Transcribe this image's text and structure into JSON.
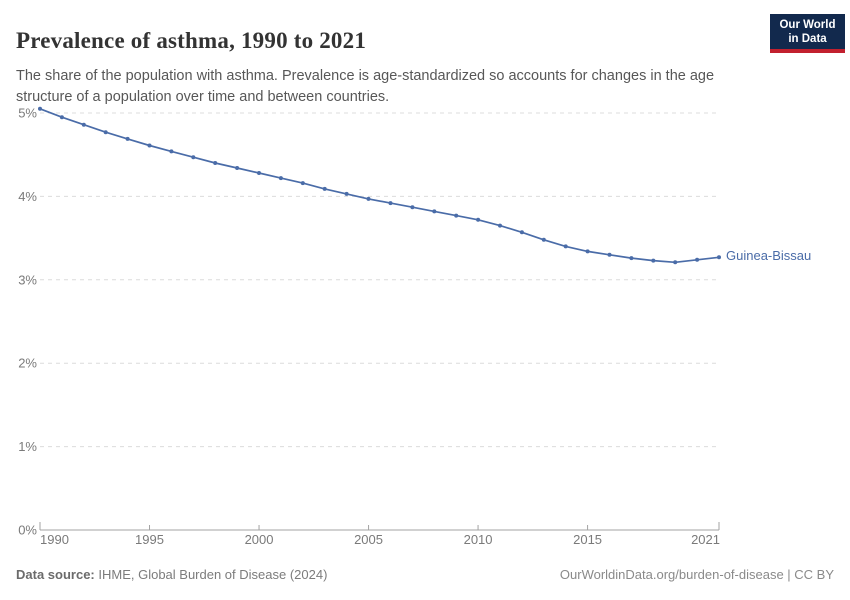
{
  "header": {
    "title": "Prevalence of asthma, 1990 to 2021",
    "subtitle": "The share of the population with asthma. Prevalence is age-standardized so accounts for changes in the age structure of a population over time and between countries.",
    "logo": {
      "line1": "Our World",
      "line2": "in Data"
    }
  },
  "chart_data": {
    "type": "line",
    "title": "Prevalence of asthma, 1990 to 2021",
    "xlabel": "",
    "ylabel": "",
    "xlim": [
      1990,
      2021
    ],
    "ylim": [
      0,
      5
    ],
    "x_ticks": [
      1990,
      1995,
      2000,
      2005,
      2010,
      2015,
      2021
    ],
    "y_ticks": [
      0,
      1,
      2,
      3,
      4,
      5
    ],
    "y_tick_suffix": "%",
    "grid": "horizontal-dashed",
    "legend_position": "end-of-line-label",
    "x": [
      1990,
      1991,
      1992,
      1993,
      1994,
      1995,
      1996,
      1997,
      1998,
      1999,
      2000,
      2001,
      2002,
      2003,
      2004,
      2005,
      2006,
      2007,
      2008,
      2009,
      2010,
      2011,
      2012,
      2013,
      2014,
      2015,
      2016,
      2017,
      2018,
      2019,
      2020,
      2021
    ],
    "series": [
      {
        "name": "Guinea-Bissau",
        "color": "#4a6ca8",
        "values": [
          5.05,
          4.95,
          4.86,
          4.77,
          4.69,
          4.61,
          4.54,
          4.47,
          4.4,
          4.34,
          4.28,
          4.22,
          4.16,
          4.09,
          4.03,
          3.97,
          3.92,
          3.87,
          3.82,
          3.77,
          3.72,
          3.65,
          3.57,
          3.48,
          3.4,
          3.34,
          3.3,
          3.26,
          3.23,
          3.21,
          3.24,
          3.27
        ]
      }
    ]
  },
  "footer": {
    "source_label": "Data source:",
    "source_text": " IHME, Global Burden of Disease (2024)",
    "credit": "OurWorldinData.org/burden-of-disease | CC BY"
  },
  "colors": {
    "line": "#4a6ca8",
    "gridline": "#dcdcdc",
    "axis": "#a3a3a3",
    "tick_label": "#7a7a7a",
    "logo_bg": "#12294d",
    "logo_stripe": "#c2202e"
  }
}
